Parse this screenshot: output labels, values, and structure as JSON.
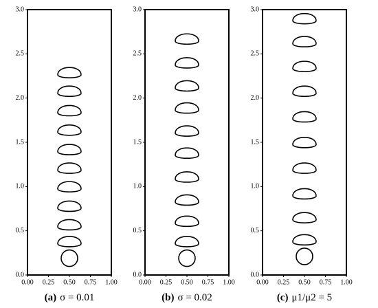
{
  "chart_data": [
    {
      "type": "scatter",
      "caption_label": "(a)",
      "caption": "σ = 0.01",
      "color": "#000000",
      "x": [
        0.5,
        0.5,
        0.5,
        0.5,
        0.5,
        0.5,
        0.5,
        0.5,
        0.5,
        0.5,
        0.5
      ],
      "y": [
        0.19,
        0.37,
        0.56,
        0.77,
        0.99,
        1.2,
        1.41,
        1.63,
        1.85,
        2.07,
        2.28
      ],
      "xlim": [
        0,
        1
      ],
      "ylim": [
        0,
        3
      ],
      "xticks": [
        {
          "value": 0,
          "label": "0.00"
        },
        0.25,
        {
          "value": 0.5,
          "label": "0.50"
        },
        0.75,
        {
          "value": 1,
          "label": "1.00"
        }
      ],
      "yticks": [
        {
          "value": 0,
          "label": "0.0"
        },
        0.5,
        {
          "value": 1,
          "label": "1.0"
        },
        1.5,
        {
          "value": 2,
          "label": "2.0"
        },
        2.5,
        {
          "value": 3,
          "label": "3.0"
        }
      ]
    },
    {
      "type": "scatter",
      "caption_label": "(b)",
      "caption": "σ = 0.02",
      "color": "#000000",
      "x": [
        0.5,
        0.5,
        0.5,
        0.5,
        0.5,
        0.5,
        0.5,
        0.5,
        0.5,
        0.5,
        0.5
      ],
      "y": [
        0.19,
        0.37,
        0.6,
        0.84,
        1.1,
        1.37,
        1.62,
        1.88,
        2.13,
        2.39,
        2.66
      ],
      "xlim": [
        0,
        1
      ],
      "ylim": [
        0,
        3
      ],
      "xticks": [
        {
          "value": 0,
          "label": "0.00"
        },
        0.25,
        {
          "value": 0.5,
          "label": "0.50"
        },
        0.75,
        {
          "value": 1,
          "label": "1.00"
        }
      ],
      "yticks": [
        {
          "value": 0,
          "label": "0.0"
        },
        0.5,
        {
          "value": 1,
          "label": "1.0"
        },
        1.5,
        {
          "value": 2,
          "label": "2.0"
        },
        2.5,
        {
          "value": 3,
          "label": "3.0"
        }
      ]
    },
    {
      "type": "scatter",
      "caption_label": "(c)",
      "caption": "μ1/μ2 = 5",
      "color": "#000000",
      "x": [
        0.5,
        0.5,
        0.5,
        0.5,
        0.5,
        0.5,
        0.5,
        0.5,
        0.5,
        0.5,
        0.5
      ],
      "y": [
        0.21,
        0.39,
        0.64,
        0.91,
        1.2,
        1.49,
        1.78,
        2.07,
        2.35,
        2.63,
        2.89
      ],
      "xlim": [
        0,
        1
      ],
      "ylim": [
        0,
        3
      ],
      "xticks": [
        {
          "value": 0,
          "label": "0.00"
        },
        0.25,
        {
          "value": 0.5,
          "label": "0.50"
        },
        0.75,
        {
          "value": 1,
          "label": "1.00"
        }
      ],
      "yticks": [
        {
          "value": 0,
          "label": "0.0"
        },
        0.5,
        {
          "value": 1,
          "label": "1.0"
        },
        1.5,
        {
          "value": 2,
          "label": "2.0"
        },
        2.5,
        {
          "value": 3,
          "label": "3.0"
        }
      ]
    }
  ]
}
